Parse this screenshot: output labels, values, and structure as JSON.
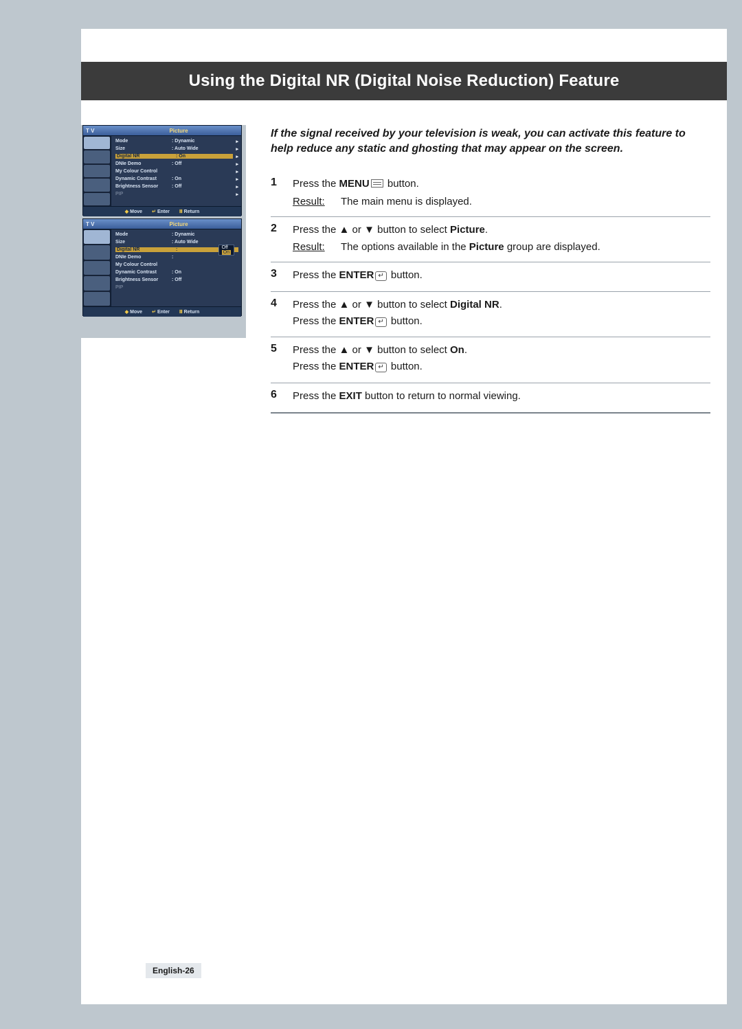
{
  "colors": {
    "page_bg": "#bec7ce",
    "inner_bg": "#ffffff",
    "band_bg": "#3b3b3b",
    "band_text": "#ffffff",
    "osd_bg": "#2a3a56",
    "osd_highlight": "#c9a13a",
    "rule": "#9aa3ab",
    "text": "#1a1a1a"
  },
  "band_title": "Using the Digital NR (Digital Noise Reduction) Feature",
  "intro": "If the signal received by your television is weak, you can activate this feature to help reduce any static and ghosting that may appear on the screen.",
  "osd": {
    "header_tv": "T V",
    "header_title": "Picture",
    "footer": {
      "move": "Move",
      "enter": "Enter",
      "return": "Return"
    },
    "menu1": {
      "rows": [
        {
          "label": "Mode",
          "value": ": Dynamic",
          "arrow": true
        },
        {
          "label": "Size",
          "value": ": Auto Wide",
          "arrow": true
        },
        {
          "label": "Digital NR",
          "value": ": On",
          "arrow": true,
          "selected": true
        },
        {
          "label": "DNIe Demo",
          "value": ": Off",
          "arrow": true
        },
        {
          "label": "My Colour Control",
          "value": "",
          "arrow": true
        },
        {
          "label": "Dynamic Contrast",
          "value": ": On",
          "arrow": true
        },
        {
          "label": "Brightness Sensor",
          "value": ": Off",
          "arrow": true
        },
        {
          "label": "PIP",
          "value": "",
          "arrow": true,
          "dim": true
        }
      ]
    },
    "menu2": {
      "rows": [
        {
          "label": "Mode",
          "value": ": Dynamic"
        },
        {
          "label": "Size",
          "value": ": Auto Wide"
        },
        {
          "label": "Digital NR",
          "value": ":",
          "selected": true
        },
        {
          "label": "DNIe Demo",
          "value": ":"
        },
        {
          "label": "My Colour Control",
          "value": ""
        },
        {
          "label": "Dynamic Contrast",
          "value": ": On"
        },
        {
          "label": "Brightness Sensor",
          "value": ": Off"
        },
        {
          "label": "PIP",
          "value": "",
          "dim": true
        }
      ],
      "popup": {
        "options": [
          "Off",
          "On"
        ],
        "selected": "On"
      }
    }
  },
  "steps": [
    {
      "n": "1",
      "lines": [
        {
          "parts": [
            {
              "t": "Press the "
            },
            {
              "t": "MENU",
              "b": true
            },
            {
              "icon": "menu"
            },
            {
              "t": " button."
            }
          ]
        }
      ],
      "result": "The main menu is displayed."
    },
    {
      "n": "2",
      "lines": [
        {
          "parts": [
            {
              "t": "Press the "
            },
            {
              "sym": "▲"
            },
            {
              "t": " or "
            },
            {
              "sym": "▼"
            },
            {
              "t": " button to select "
            },
            {
              "t": "Picture",
              "b": true
            },
            {
              "t": "."
            }
          ]
        }
      ],
      "result": "The options available in the Picture group are displayed.",
      "result_bold": [
        "Picture"
      ]
    },
    {
      "n": "3",
      "lines": [
        {
          "parts": [
            {
              "t": "Press the "
            },
            {
              "t": "ENTER",
              "b": true
            },
            {
              "icon": "enter"
            },
            {
              "t": " button."
            }
          ]
        }
      ]
    },
    {
      "n": "4",
      "lines": [
        {
          "parts": [
            {
              "t": "Press the "
            },
            {
              "sym": "▲"
            },
            {
              "t": " or "
            },
            {
              "sym": "▼"
            },
            {
              "t": " button to select "
            },
            {
              "t": "Digital NR",
              "b": true
            },
            {
              "t": "."
            }
          ]
        },
        {
          "parts": [
            {
              "t": "Press the "
            },
            {
              "t": "ENTER",
              "b": true
            },
            {
              "icon": "enter"
            },
            {
              "t": "  button."
            }
          ]
        }
      ]
    },
    {
      "n": "5",
      "lines": [
        {
          "parts": [
            {
              "t": "Press the "
            },
            {
              "sym": "▲"
            },
            {
              "t": " or "
            },
            {
              "sym": "▼"
            },
            {
              "t": " button to select "
            },
            {
              "t": "On",
              "b": true
            },
            {
              "t": "."
            }
          ]
        },
        {
          "parts": [
            {
              "t": "Press the "
            },
            {
              "t": "ENTER",
              "b": true
            },
            {
              "icon": "enter"
            },
            {
              "t": " button."
            }
          ]
        }
      ]
    },
    {
      "n": "6",
      "lines": [
        {
          "parts": [
            {
              "t": "Press the "
            },
            {
              "t": "EXIT",
              "b": true
            },
            {
              "t": " button to return to normal viewing."
            }
          ]
        }
      ],
      "last": true
    }
  ],
  "result_label": "Result",
  "page_number": "English-26"
}
